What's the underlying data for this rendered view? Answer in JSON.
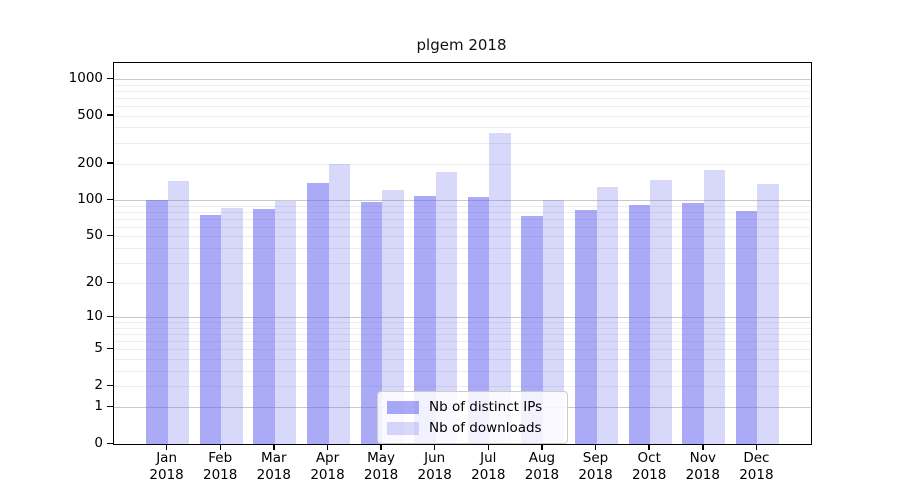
{
  "chart_data": {
    "type": "bar",
    "title": "plgem 2018",
    "categories": [
      "Jan",
      "Feb",
      "Mar",
      "Apr",
      "May",
      "Jun",
      "Jul",
      "Aug",
      "Sep",
      "Oct",
      "Nov",
      "Dec"
    ],
    "year_label": "2018",
    "series": [
      {
        "name": "Nb of distinct IPs",
        "color": "rgba(100,100,240,0.55)",
        "values": [
          100,
          75,
          84,
          138,
          96,
          108,
          106,
          74,
          83,
          92,
          94,
          82
        ]
      },
      {
        "name": "Nb of downloads",
        "color": "rgba(100,100,240,0.25)",
        "values": [
          145,
          86,
          98,
          200,
          121,
          170,
          360,
          100,
          129,
          148,
          178,
          136
        ]
      }
    ],
    "xlabel": "",
    "ylabel": "",
    "y_scale": "symlog-log(1+v)",
    "y_ticks": [
      0,
      1,
      2,
      5,
      10,
      20,
      50,
      100,
      200,
      500,
      1000
    ],
    "ylim": [
      0,
      1355
    ],
    "grid": {
      "major_lines": [
        1,
        10,
        100,
        1000
      ],
      "minor_mantissas": [
        2,
        3,
        4,
        5,
        6,
        7,
        8,
        9
      ],
      "minor_decades": [
        1,
        10,
        100
      ],
      "major_color": "#c9c9c9",
      "minor_color": "#ededed"
    },
    "legend_position": "inside-bottom-center"
  }
}
